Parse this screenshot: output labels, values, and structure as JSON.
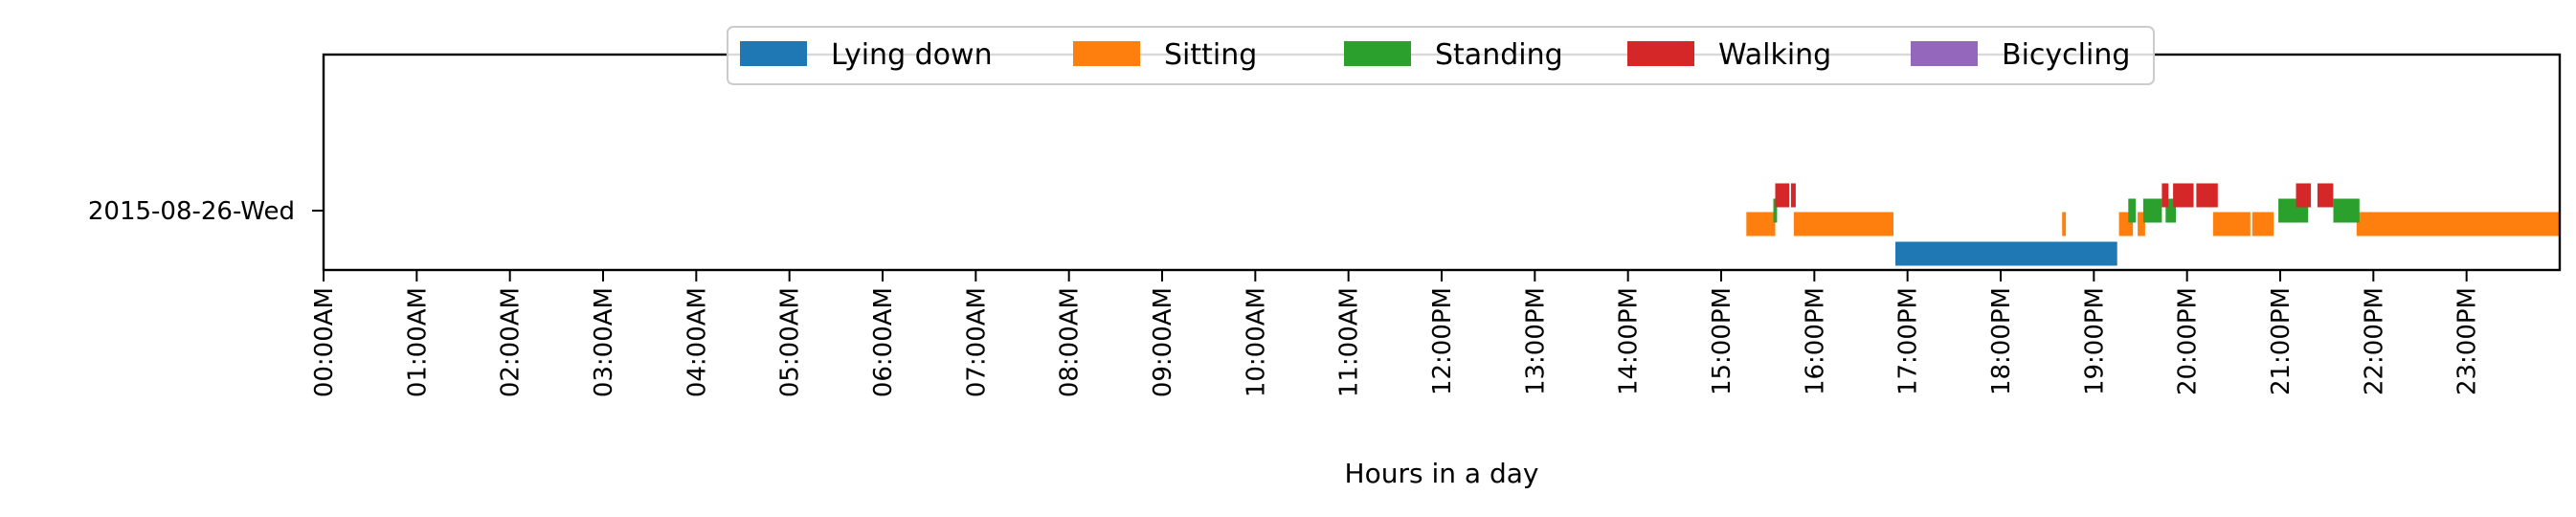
{
  "chart_data": {
    "type": "timeline",
    "xlabel": "Hours in a day",
    "xlim": [
      0,
      24
    ],
    "ylabel": "",
    "y_categories": [
      "2015-08-26-Wed"
    ],
    "x_tick_labels": [
      "00:00AM",
      "01:00AM",
      "02:00AM",
      "03:00AM",
      "04:00AM",
      "05:00AM",
      "06:00AM",
      "07:00AM",
      "08:00AM",
      "09:00AM",
      "10:00AM",
      "11:00AM",
      "12:00PM",
      "13:00PM",
      "14:00PM",
      "15:00PM",
      "16:00PM",
      "17:00PM",
      "18:00PM",
      "19:00PM",
      "20:00PM",
      "21:00PM",
      "22:00PM",
      "23:00PM"
    ],
    "legend_position": "top-center",
    "series": [
      {
        "name": "Lying down",
        "color": "#1f77b4",
        "level": 0,
        "intervals": [
          [
            16.87,
            19.25
          ]
        ]
      },
      {
        "name": "Sitting",
        "color": "#ff7f0e",
        "level": 1,
        "intervals": [
          [
            15.27,
            15.58
          ],
          [
            15.78,
            16.85
          ],
          [
            18.66,
            18.7
          ],
          [
            19.27,
            19.42
          ],
          [
            19.47,
            19.55
          ],
          [
            20.28,
            20.68
          ],
          [
            20.7,
            20.93
          ],
          [
            21.82,
            24.0
          ]
        ]
      },
      {
        "name": "Standing",
        "color": "#2ca02c",
        "level": 2,
        "intervals": [
          [
            15.56,
            15.6
          ],
          [
            19.37,
            19.45
          ],
          [
            19.53,
            19.73
          ],
          [
            19.77,
            19.88
          ],
          [
            20.98,
            21.3
          ],
          [
            21.57,
            21.85
          ]
        ]
      },
      {
        "name": "Walking",
        "color": "#d62728",
        "level": 3,
        "intervals": [
          [
            15.58,
            15.73
          ],
          [
            15.75,
            15.8
          ],
          [
            19.73,
            19.8
          ],
          [
            19.85,
            20.07
          ],
          [
            20.1,
            20.33
          ],
          [
            21.17,
            21.33
          ],
          [
            21.4,
            21.57
          ]
        ]
      },
      {
        "name": "Bicycling",
        "color": "#9467bd",
        "level": 4,
        "intervals": []
      }
    ]
  }
}
